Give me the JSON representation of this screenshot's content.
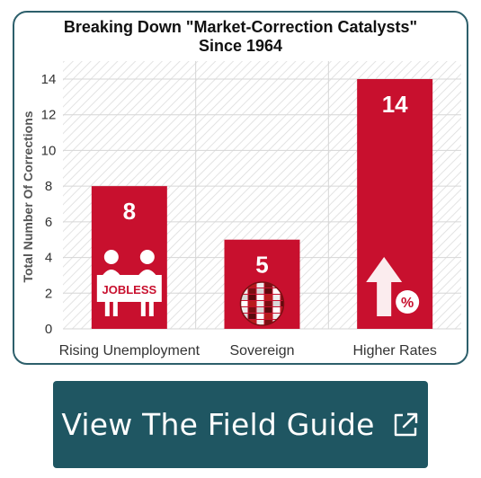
{
  "chart_data": {
    "type": "bar",
    "title": "Breaking Down \"Market-Correction Catalysts\"\nSince 1964",
    "xlabel": "",
    "ylabel": "Total Number Of Corrections",
    "categories": [
      "Rising Unemployment",
      "Sovereign",
      "Higher Rates"
    ],
    "values": [
      8,
      5,
      14
    ],
    "data_labels": [
      "8",
      "5",
      "14"
    ],
    "ylim": [
      0,
      14
    ],
    "yticks": [
      0,
      2,
      4,
      6,
      8,
      10,
      12,
      14
    ],
    "ytick_labels": [
      "0",
      "2",
      "4",
      "6",
      "8",
      "10",
      "12",
      "14"
    ],
    "grid": true,
    "bar_color": "#c8102e",
    "plot_background": "hatched light gray",
    "bar_icons": [
      {
        "name": "jobless-people-icon",
        "sign_text": "JOBLESS"
      },
      {
        "name": "globe-flags-icon"
      },
      {
        "name": "arrow-up-percent-icon"
      }
    ]
  },
  "cta": {
    "label": "View The Field Guide",
    "icon": "external-link-icon",
    "background": "#1f5662"
  }
}
